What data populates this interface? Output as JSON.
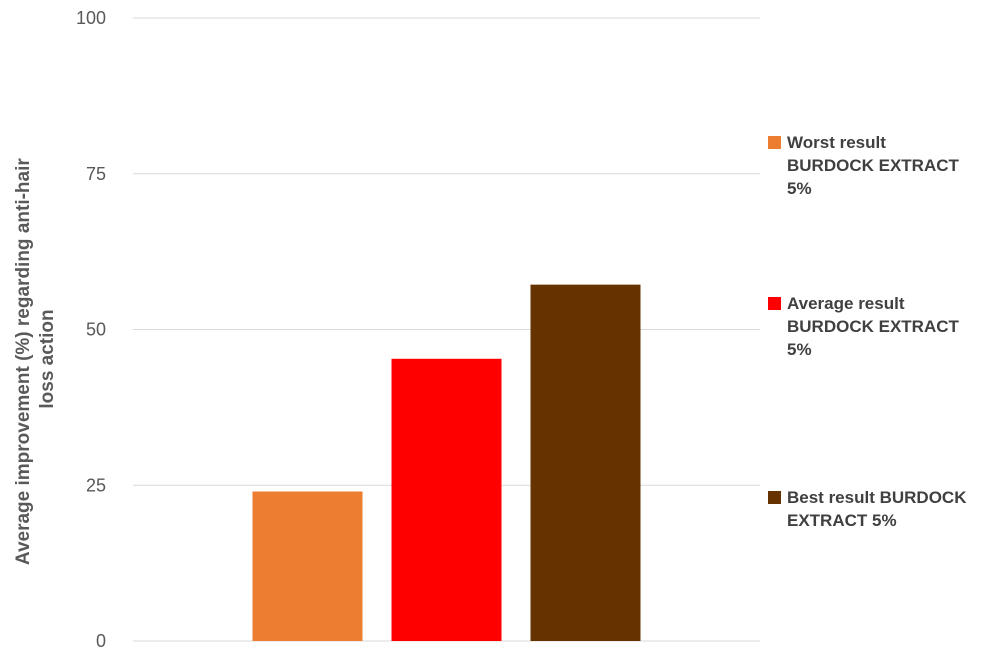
{
  "colors": {
    "grid": "#d9d9d9",
    "axis_text": "#595959",
    "legend_text": "#404040"
  },
  "chart_data": {
    "type": "bar",
    "title": "",
    "xlabel": "",
    "ylabel_lines": [
      "Average improvement (%) regarding anti-hair",
      "loss action"
    ],
    "ylim": [
      0,
      100
    ],
    "yticks": [
      0,
      25,
      50,
      75,
      100
    ],
    "ytick_labels": [
      "0",
      "25",
      "50",
      "75",
      "100"
    ],
    "grid": true,
    "legend_position": "right",
    "categories": [
      ""
    ],
    "series": [
      {
        "name": "Worst result BURDOCK EXTRACT 5%",
        "values": [
          24
        ],
        "color": "#ed7d31"
      },
      {
        "name": "Average result BURDOCK EXTRACT 5%",
        "values": [
          45.3
        ],
        "color": "#ff0000"
      },
      {
        "name": "Best result BURDOCK EXTRACT 5%",
        "values": [
          57.2
        ],
        "color": "#663300"
      }
    ]
  },
  "legend": {
    "items": [
      {
        "lines": [
          "Worst result",
          "BURDOCK EXTRACT",
          "5%"
        ],
        "color": "#ed7d31"
      },
      {
        "lines": [
          "Average result",
          "BURDOCK EXTRACT",
          "5%"
        ],
        "color": "#ff0000"
      },
      {
        "lines": [
          "Best result BURDOCK",
          "EXTRACT 5%"
        ],
        "color": "#663300"
      }
    ]
  }
}
